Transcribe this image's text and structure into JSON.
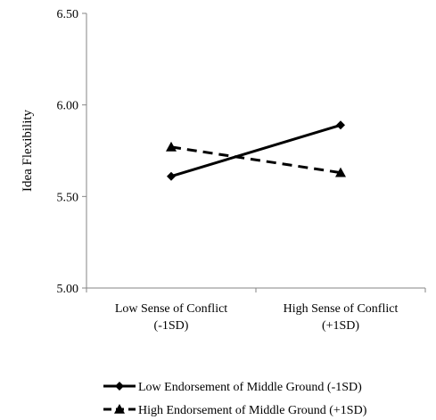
{
  "chart_data": {
    "type": "line",
    "title": "",
    "xlabel": "",
    "ylabel": "Idea Flexibility",
    "ylim": [
      5.0,
      6.5
    ],
    "yticks": [
      5.0,
      5.5,
      6.0,
      6.5
    ],
    "ytick_labels": [
      "5.00",
      "5.50",
      "6.00",
      "6.50"
    ],
    "categories": [
      [
        "Low Sense of Conflict",
        "(-1SD)"
      ],
      [
        "High Sense of Conflict",
        "(+1SD)"
      ]
    ],
    "grid": false,
    "legend": "bottom",
    "series": [
      {
        "name": "Low Endorsement of Middle Ground (-1SD)",
        "values": [
          5.61,
          5.89
        ],
        "marker": "diamond",
        "line": "solid",
        "color": "#000000"
      },
      {
        "name": "High Endorsement of Middle Ground (+1SD)",
        "values": [
          5.77,
          5.63
        ],
        "marker": "triangle",
        "line": "dashed",
        "color": "#000000"
      }
    ]
  }
}
